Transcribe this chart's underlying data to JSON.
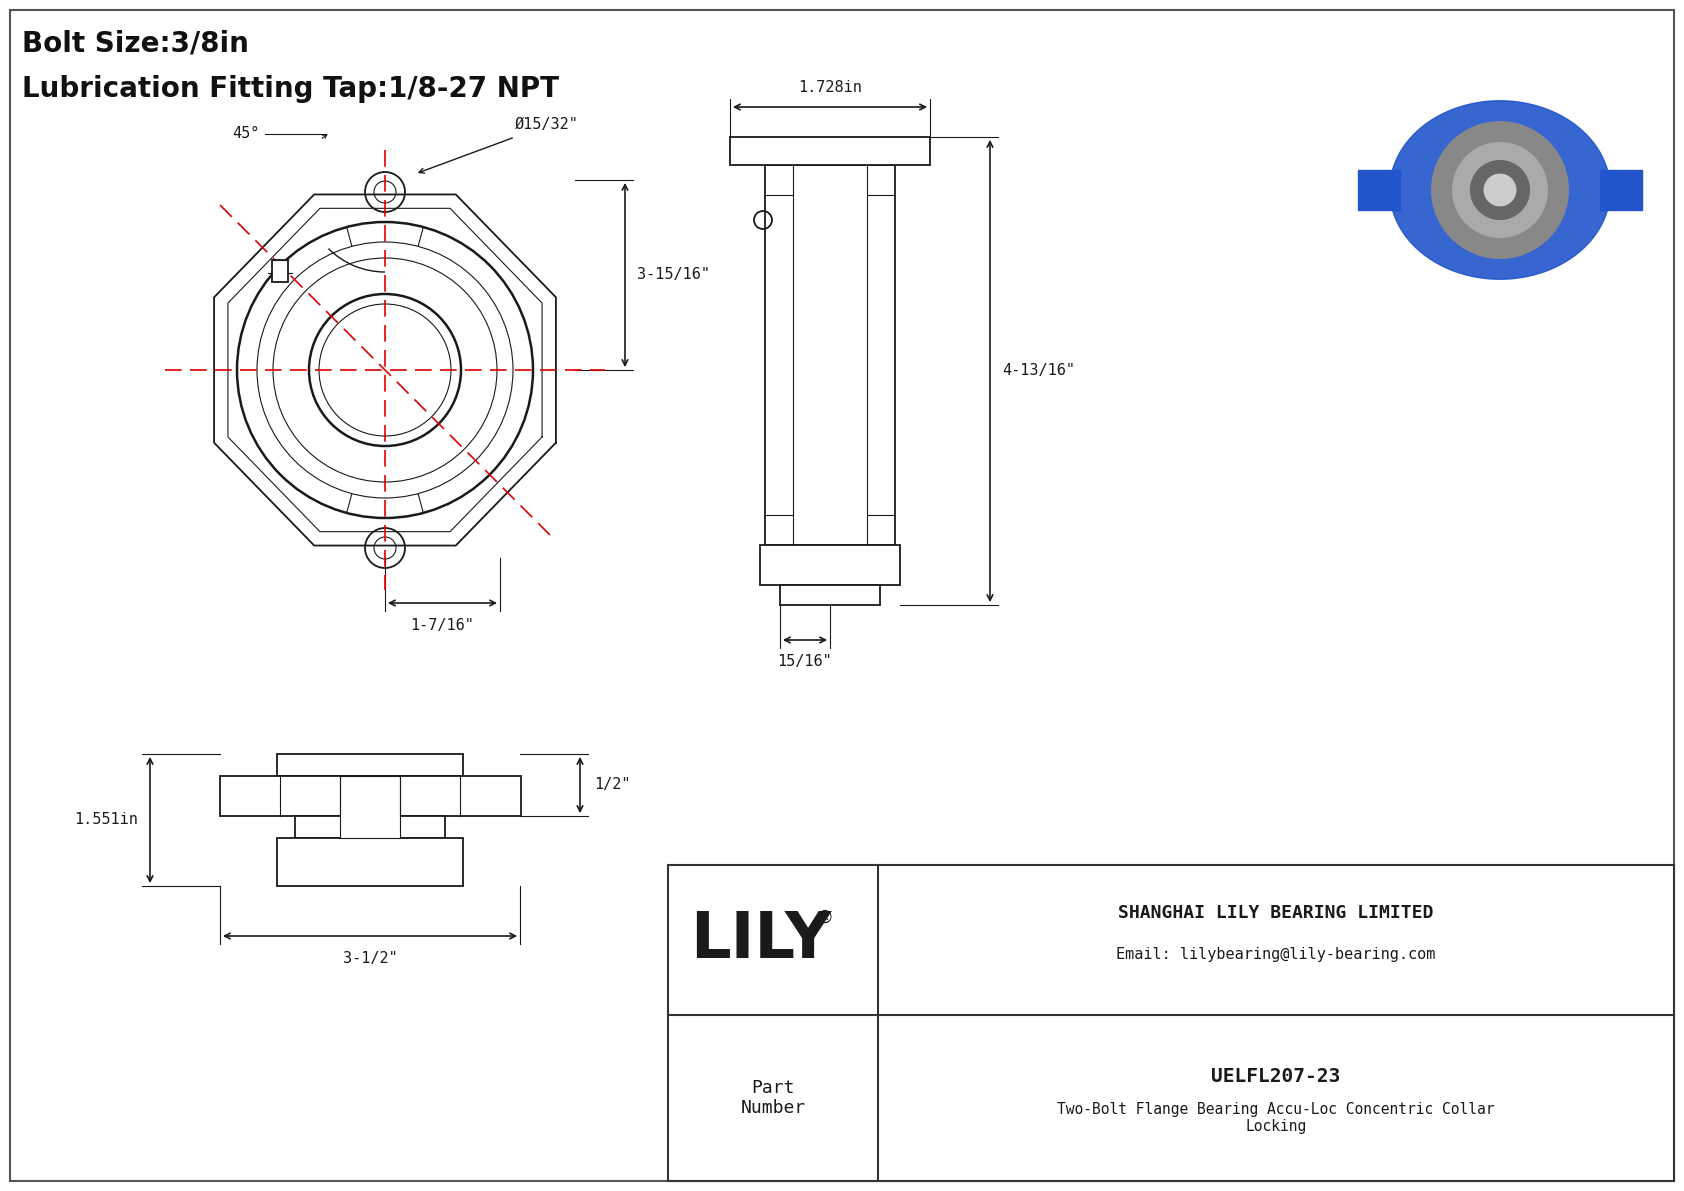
{
  "bg_color": "#ffffff",
  "line_color": "#1a1a1a",
  "red_color": "#e00000",
  "title_line1": "Bolt Size:3/8in",
  "title_line2": "Lubrication Fitting Tap:1/8-27 NPT",
  "title_fontsize": 20,
  "company_name": "SHANGHAI LILY BEARING LIMITED",
  "company_email": "Email: lilybearing@lily-bearing.com",
  "lily_logo": "LILY",
  "registered": "®",
  "part_label": "Part\nNumber",
  "part_number": "UELFL207-23",
  "part_desc": "Two-Bolt Flange Bearing Accu-Loc Concentric Collar\nLocking",
  "dim_45": "45°",
  "dim_bore": "Ø15/32\"",
  "dim_height": "3-15/16\"",
  "dim_bc": "1-7/16\"",
  "dim_width_side": "1.728in",
  "dim_height_side": "4-13/16\"",
  "dim_depth_side": "15/16\"",
  "dim_length_bottom": "3-1/2\"",
  "dim_height_bottom": "1.551in",
  "dim_half_bottom": "1/2\""
}
